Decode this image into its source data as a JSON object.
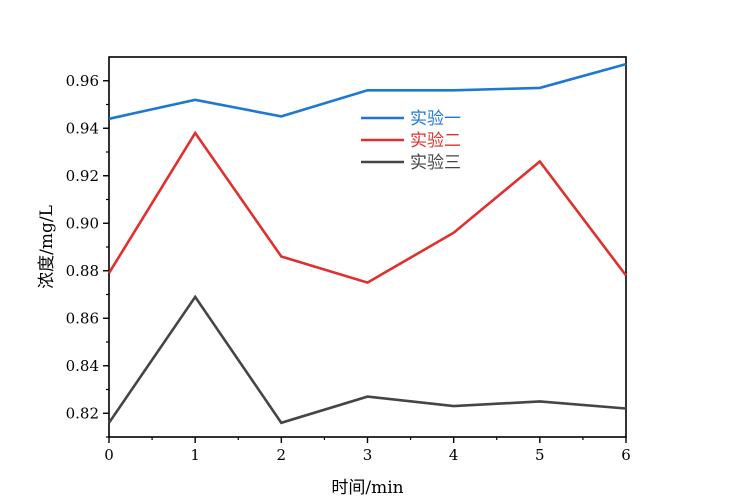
{
  "chart_data": {
    "type": "line",
    "title": "",
    "xlabel": "时间/min",
    "ylabel": "浓度/mg/L",
    "x": [
      0,
      1,
      2,
      3,
      4,
      5,
      6
    ],
    "xlim": [
      0,
      6
    ],
    "ylim": [
      0.81,
      0.97
    ],
    "xticks": [
      "0",
      "1",
      "2",
      "3",
      "4",
      "5",
      "6"
    ],
    "yticks": [
      "0.82",
      "0.84",
      "0.86",
      "0.88",
      "0.90",
      "0.92",
      "0.94",
      "0.96"
    ],
    "grid": false,
    "legend_position": "top-center",
    "series": [
      {
        "name": "实验一",
        "color": "#1f77d4",
        "values": [
          0.944,
          0.952,
          0.945,
          0.956,
          0.956,
          0.957,
          0.967
        ]
      },
      {
        "name": "实验二",
        "color": "#e0302e",
        "values": [
          0.879,
          0.938,
          0.886,
          0.875,
          0.896,
          0.926,
          0.878
        ]
      },
      {
        "name": "实验三",
        "color": "#454545",
        "values": [
          0.816,
          0.869,
          0.816,
          0.827,
          0.823,
          0.825,
          0.822
        ]
      }
    ]
  }
}
